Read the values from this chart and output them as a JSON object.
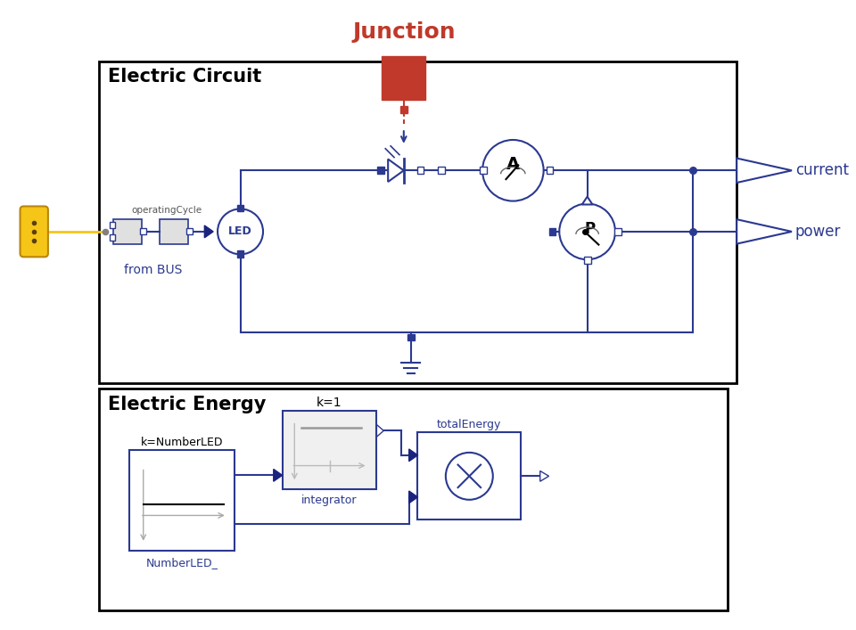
{
  "bg": "#ffffff",
  "blue": "#2b3990",
  "dblue": "#1a237e",
  "red": "#c0392b",
  "yellow": "#f5c518",
  "black": "#000000",
  "junction_label": "Junction",
  "ec_label": "Electric Circuit",
  "ee_label": "Electric Energy",
  "from_bus": "from BUS",
  "led_label": "LED",
  "integrator_label": "integrator",
  "k1_label": "k=1",
  "numberled_label": "NumberLED_",
  "knumled_label": "k=NumberLED",
  "totalenergy_label": "totalEnergy",
  "current_label": "current",
  "power_label": "power",
  "opcycle_label": "operatingCycle"
}
